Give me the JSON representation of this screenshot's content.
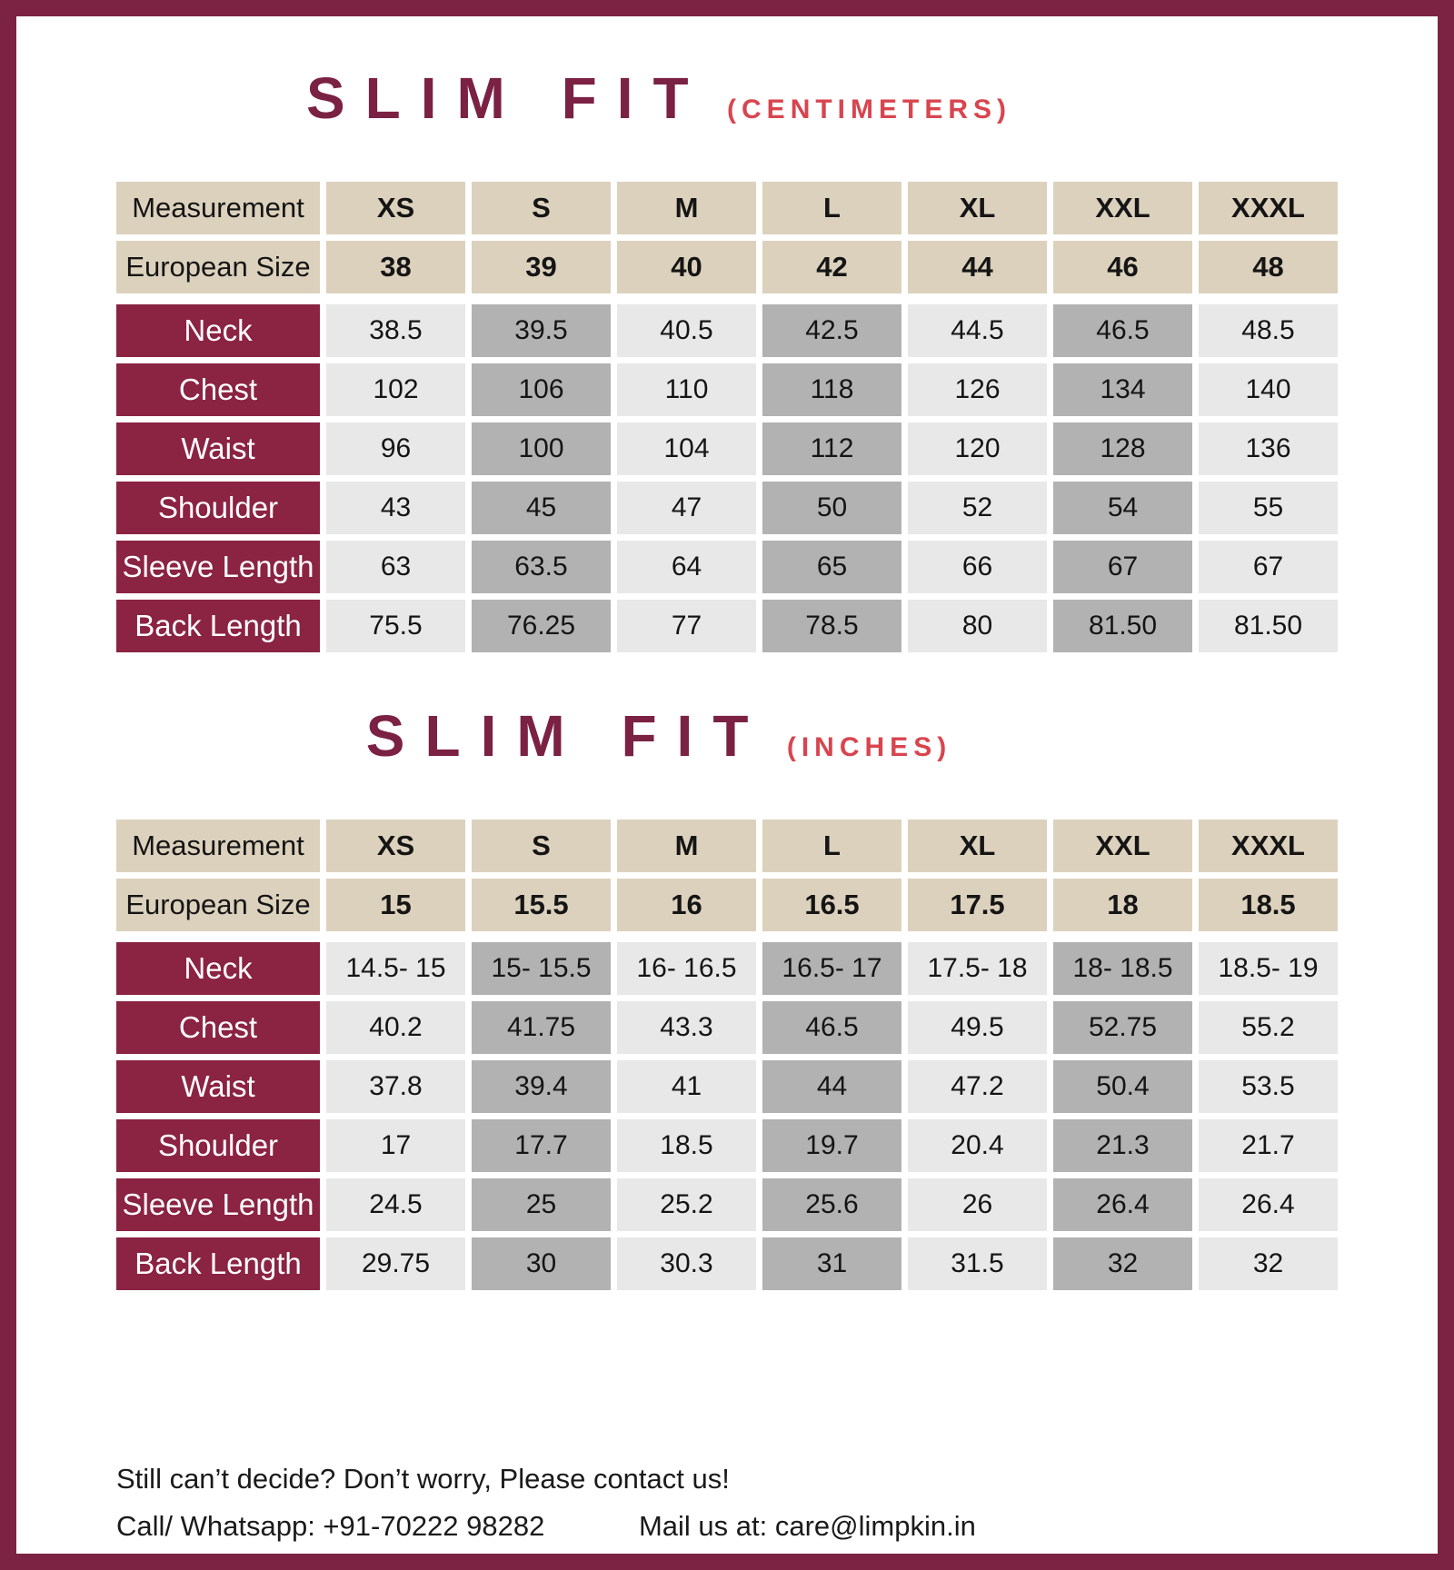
{
  "colors": {
    "frame_maroon": "#7c2343",
    "title_maroon": "#7b2144",
    "unit_red": "#d8454f",
    "row_label_maroon": "#8b2342",
    "header_beige": "#dcd1bc",
    "cell_light_gray": "#e9e8e8",
    "cell_dark_gray": "#b3b2b2"
  },
  "tables": [
    {
      "title": "SLIM FIT",
      "unit_label": "(CENTIMETERS)",
      "header": {
        "measurement_label": "Measurement",
        "sizes": [
          "XS",
          "S",
          "M",
          "L",
          "XL",
          "XXL",
          "XXXL"
        ]
      },
      "european": {
        "label": "European Size",
        "values": [
          "38",
          "39",
          "40",
          "42",
          "44",
          "46",
          "48"
        ]
      },
      "rows": [
        {
          "label": "Neck",
          "values": [
            "38.5",
            "39.5",
            "40.5",
            "42.5",
            "44.5",
            "46.5",
            "48.5"
          ]
        },
        {
          "label": "Chest",
          "values": [
            "102",
            "106",
            "110",
            "118",
            "126",
            "134",
            "140"
          ]
        },
        {
          "label": "Waist",
          "values": [
            "96",
            "100",
            "104",
            "112",
            "120",
            "128",
            "136"
          ]
        },
        {
          "label": "Shoulder",
          "values": [
            "43",
            "45",
            "47",
            "50",
            "52",
            "54",
            "55"
          ]
        },
        {
          "label": "Sleeve Length",
          "values": [
            "63",
            "63.5",
            "64",
            "65",
            "66",
            "67",
            "67"
          ]
        },
        {
          "label": "Back Length",
          "values": [
            "75.5",
            "76.25",
            "77",
            "78.5",
            "80",
            "81.50",
            "81.50"
          ]
        }
      ]
    },
    {
      "title": "SLIM FIT",
      "unit_label": "(INCHES)",
      "header": {
        "measurement_label": "Measurement",
        "sizes": [
          "XS",
          "S",
          "M",
          "L",
          "XL",
          "XXL",
          "XXXL"
        ]
      },
      "european": {
        "label": "European Size",
        "values": [
          "15",
          "15.5",
          "16",
          "16.5",
          "17.5",
          "18",
          "18.5"
        ]
      },
      "rows": [
        {
          "label": "Neck",
          "values": [
            "14.5- 15",
            "15- 15.5",
            "16- 16.5",
            "16.5- 17",
            "17.5- 18",
            "18- 18.5",
            "18.5- 19"
          ]
        },
        {
          "label": "Chest",
          "values": [
            "40.2",
            "41.75",
            "43.3",
            "46.5",
            "49.5",
            "52.75",
            "55.2"
          ]
        },
        {
          "label": "Waist",
          "values": [
            "37.8",
            "39.4",
            "41",
            "44",
            "47.2",
            "50.4",
            "53.5"
          ]
        },
        {
          "label": "Shoulder",
          "values": [
            "17",
            "17.7",
            "18.5",
            "19.7",
            "20.4",
            "21.3",
            "21.7"
          ]
        },
        {
          "label": "Sleeve Length",
          "values": [
            "24.5",
            "25",
            "25.2",
            "25.6",
            "26",
            "26.4",
            "26.4"
          ]
        },
        {
          "label": "Back Length",
          "values": [
            "29.75",
            "30",
            "30.3",
            "31",
            "31.5",
            "32",
            "32"
          ]
        }
      ]
    }
  ],
  "footer": {
    "line1": "Still can’t decide? Don’t worry, Please contact us!",
    "contact_phone": "Call/ Whatsapp: +91-70222 98282",
    "contact_email": "Mail us at: care@limpkin.in"
  }
}
